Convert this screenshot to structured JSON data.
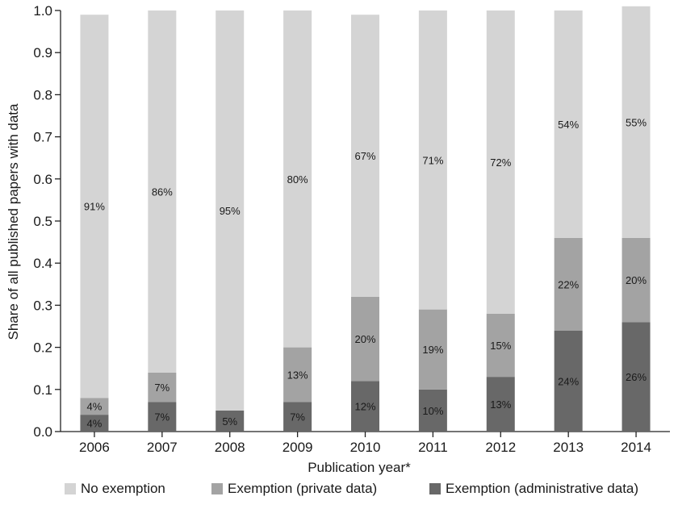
{
  "chart_data": {
    "type": "bar",
    "stacked": true,
    "title": "",
    "xlabel": "Publication year*",
    "ylabel": "Share of all published papers with data",
    "ylim": [
      0,
      1.0
    ],
    "yticks": [
      "0.0",
      "0.1",
      "0.2",
      "0.3",
      "0.4",
      "0.5",
      "0.6",
      "0.7",
      "0.8",
      "0.9",
      "1.0"
    ],
    "grid": false,
    "legend_position": "bottom",
    "categories": [
      "2006",
      "2007",
      "2008",
      "2009",
      "2010",
      "2011",
      "2012",
      "2013",
      "2014"
    ],
    "series": [
      {
        "name": "Exemption (administrative data)",
        "color": "#686868",
        "label_color": "#bdbdbd",
        "values": [
          0.04,
          0.07,
          0.05,
          0.07,
          0.12,
          0.1,
          0.13,
          0.24,
          0.26
        ],
        "labels": [
          "4%",
          "7%",
          "5%",
          "7%",
          "12%",
          "10%",
          "13%",
          "24%",
          "26%"
        ]
      },
      {
        "name": "Exemption (private data)",
        "color": "#a3a3a3",
        "label_color": "#333333",
        "values": [
          0.04,
          0.07,
          0.0,
          0.13,
          0.2,
          0.19,
          0.15,
          0.22,
          0.2
        ],
        "labels": [
          "4%",
          "7%",
          "",
          "13%",
          "20%",
          "19%",
          "15%",
          "22%",
          "20%"
        ]
      },
      {
        "name": "No exemption",
        "color": "#d4d4d4",
        "label_color": "#1a1a1a",
        "values": [
          0.91,
          0.86,
          0.95,
          0.8,
          0.67,
          0.71,
          0.72,
          0.54,
          0.55
        ],
        "labels": [
          "91%",
          "86%",
          "95%",
          "80%",
          "67%",
          "71%",
          "72%",
          "54%",
          "55%"
        ]
      }
    ],
    "legend_order": [
      "No exemption",
      "Exemption (private data)",
      "Exemption (administrative data)"
    ]
  }
}
